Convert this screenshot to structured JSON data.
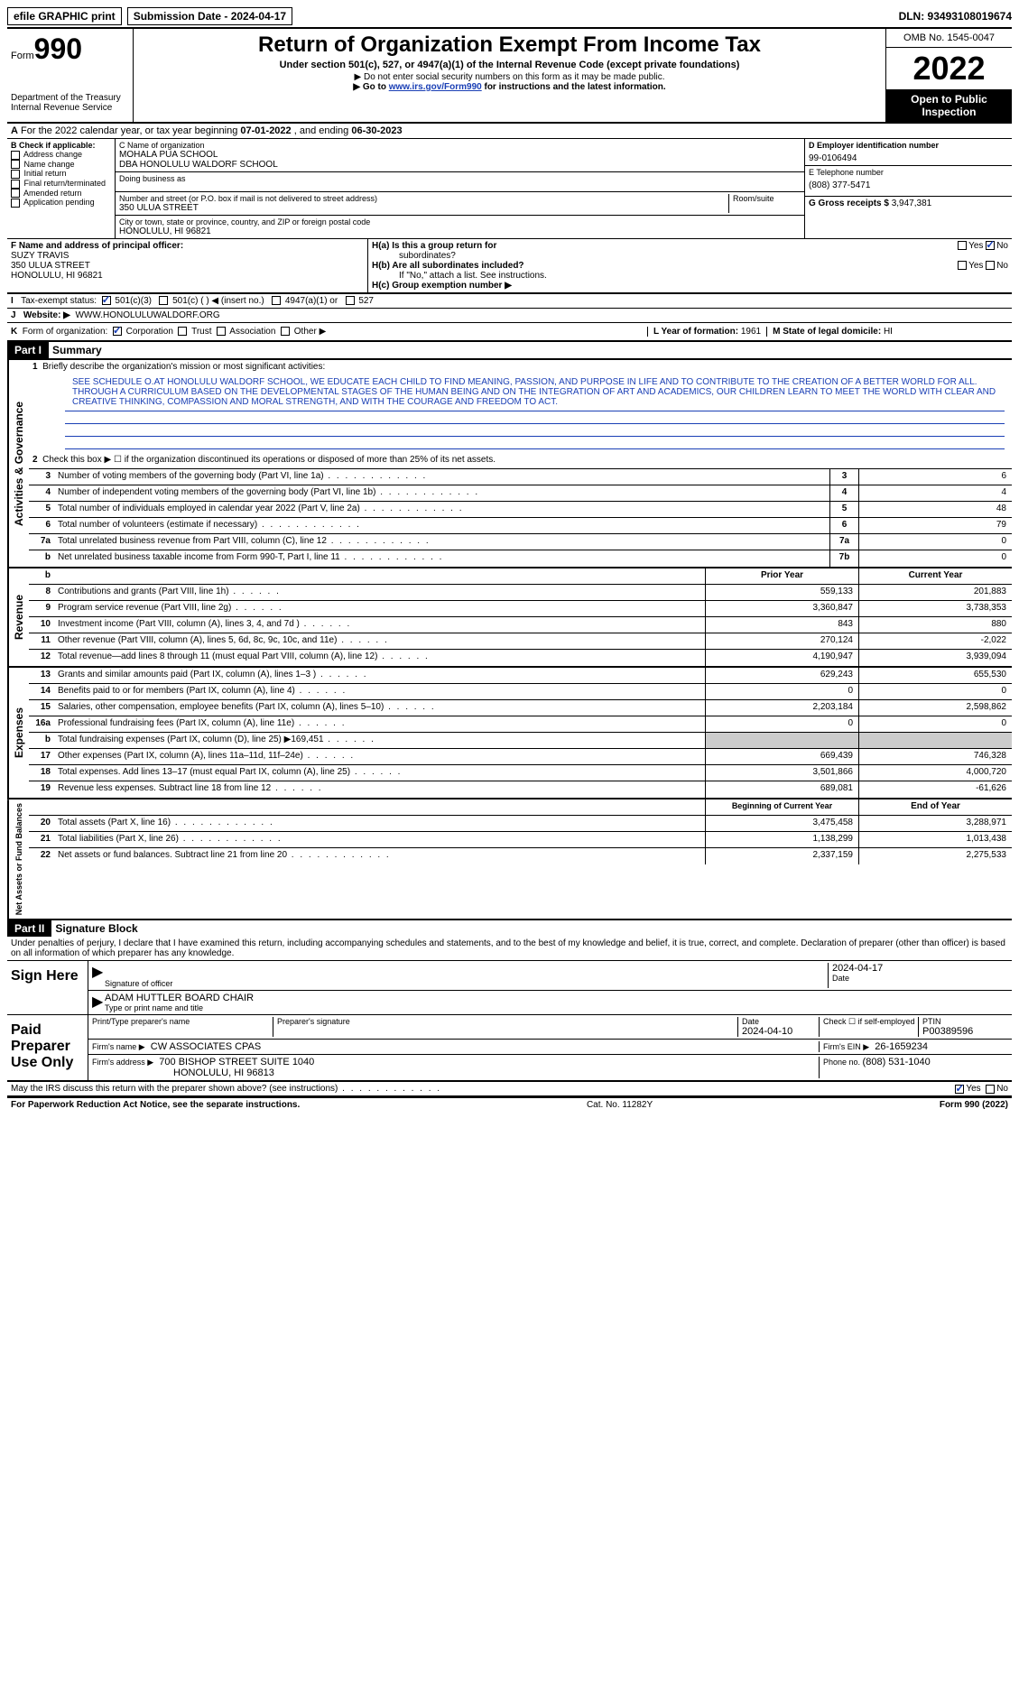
{
  "topbar": {
    "efile": "efile GRAPHIC print",
    "submission": "Submission Date - 2024-04-17",
    "dln": "DLN: 93493108019674"
  },
  "header": {
    "form_prefix": "Form",
    "form_number": "990",
    "dept": "Department of the Treasury Internal Revenue Service",
    "title": "Return of Organization Exempt From Income Tax",
    "subtitle": "Under section 501(c), 527, or 4947(a)(1) of the Internal Revenue Code (except private foundations)",
    "note1": "▶ Do not enter social security numbers on this form as it may be made public.",
    "note2_pre": "▶ Go to ",
    "note2_link": "www.irs.gov/Form990",
    "note2_post": " for instructions and the latest information.",
    "omb": "OMB No. 1545-0047",
    "year": "2022",
    "inspection": "Open to Public Inspection"
  },
  "rowA": {
    "label_a": "A",
    "text": "For the 2022 calendar year, or tax year beginning ",
    "begin": "07-01-2022",
    "mid": "   , and ending ",
    "end": "06-30-2023"
  },
  "colB": {
    "label": "B Check if applicable:",
    "items": [
      "Address change",
      "Name change",
      "Initial return",
      "Final return/terminated",
      "Amended return",
      "Application pending"
    ]
  },
  "colC": {
    "name_label": "C Name of organization",
    "name1": "MOHALA PUA SCHOOL",
    "name2": "DBA HONOLULU WALDORF SCHOOL",
    "dba_label": "Doing business as",
    "addr_label": "Number and street (or P.O. box if mail is not delivered to street address)",
    "addr": "350 ULUA STREET",
    "room_label": "Room/suite",
    "city_label": "City or town, state or province, country, and ZIP or foreign postal code",
    "city": "HONOLULU, HI  96821"
  },
  "colD": {
    "ein_label": "D Employer identification number",
    "ein": "99-0106494",
    "phone_label": "E Telephone number",
    "phone": "(808) 377-5471",
    "receipts_label": "G Gross receipts $ ",
    "receipts": "3,947,381"
  },
  "colF": {
    "label": "F  Name and address of principal officer:",
    "name": "SUZY TRAVIS",
    "addr": "350 ULUA STREET",
    "city": "HONOLULU, HI  96821"
  },
  "colH": {
    "ha_label": "H(a)  Is this a group return for",
    "ha_sub": "subordinates?",
    "hb_label": "H(b)  Are all subordinates included?",
    "hb_note": "If \"No,\" attach a list. See instructions.",
    "hc_label": "H(c)  Group exemption number ▶",
    "yes": "Yes",
    "no": "No"
  },
  "rowI": {
    "label": "I",
    "text": "Tax-exempt status:",
    "opt1": "501(c)(3)",
    "opt2": "501(c) (   ) ◀ (insert no.)",
    "opt3": "4947(a)(1) or",
    "opt4": "527"
  },
  "rowJ": {
    "label": "J",
    "text": "Website: ▶",
    "value": "WWW.HONOLULUWALDORF.ORG"
  },
  "rowK": {
    "label": "K",
    "text": "Form of organization:",
    "opts": [
      "Corporation",
      "Trust",
      "Association",
      "Other ▶"
    ],
    "l_label": "L Year of formation: ",
    "l_val": "1961",
    "m_label": "M State of legal domicile: ",
    "m_val": "HI"
  },
  "partI": {
    "header": "Part I",
    "title": "Summary",
    "line1_label": "1",
    "line1_text": "Briefly describe the organization's mission or most significant activities:",
    "mission": "SEE SCHEDULE O.AT HONOLULU WALDORF SCHOOL, WE EDUCATE EACH CHILD TO FIND MEANING, PASSION, AND PURPOSE IN LIFE AND TO CONTRIBUTE TO THE CREATION OF A BETTER WORLD FOR ALL. THROUGH A CURRICULUM BASED ON THE DEVELOPMENTAL STAGES OF THE HUMAN BEING AND ON THE INTEGRATION OF ART AND ACADEMICS, OUR CHILDREN LEARN TO MEET THE WORLD WITH CLEAR AND CREATIVE THINKING, COMPASSION AND MORAL STRENGTH, AND WITH THE COURAGE AND FREEDOM TO ACT.",
    "line2_label": "2",
    "line2_text": "Check this box ▶ ☐  if the organization discontinued its operations or disposed of more than 25% of its net assets."
  },
  "governance": {
    "side": "Activities & Governance",
    "rows": [
      {
        "n": "3",
        "desc": "Number of voting members of the governing body (Part VI, line 1a)",
        "box": "3",
        "val": "6"
      },
      {
        "n": "4",
        "desc": "Number of independent voting members of the governing body (Part VI, line 1b)",
        "box": "4",
        "val": "4"
      },
      {
        "n": "5",
        "desc": "Total number of individuals employed in calendar year 2022 (Part V, line 2a)",
        "box": "5",
        "val": "48"
      },
      {
        "n": "6",
        "desc": "Total number of volunteers (estimate if necessary)",
        "box": "6",
        "val": "79"
      },
      {
        "n": "7a",
        "desc": "Total unrelated business revenue from Part VIII, column (C), line 12",
        "box": "7a",
        "val": "0"
      },
      {
        "n": "b",
        "desc": "Net unrelated business taxable income from Form 990-T, Part I, line 11",
        "box": "7b",
        "val": "0"
      }
    ]
  },
  "revenue": {
    "side": "Revenue",
    "header_b": "b",
    "header_prior": "Prior Year",
    "header_current": "Current Year",
    "rows": [
      {
        "n": "8",
        "desc": "Contributions and grants (Part VIII, line 1h)",
        "prior": "559,133",
        "cur": "201,883"
      },
      {
        "n": "9",
        "desc": "Program service revenue (Part VIII, line 2g)",
        "prior": "3,360,847",
        "cur": "3,738,353"
      },
      {
        "n": "10",
        "desc": "Investment income (Part VIII, column (A), lines 3, 4, and 7d )",
        "prior": "843",
        "cur": "880"
      },
      {
        "n": "11",
        "desc": "Other revenue (Part VIII, column (A), lines 5, 6d, 8c, 9c, 10c, and 11e)",
        "prior": "270,124",
        "cur": "-2,022"
      },
      {
        "n": "12",
        "desc": "Total revenue—add lines 8 through 11 (must equal Part VIII, column (A), line 12)",
        "prior": "4,190,947",
        "cur": "3,939,094"
      }
    ]
  },
  "expenses": {
    "side": "Expenses",
    "rows": [
      {
        "n": "13",
        "desc": "Grants and similar amounts paid (Part IX, column (A), lines 1–3 )",
        "prior": "629,243",
        "cur": "655,530"
      },
      {
        "n": "14",
        "desc": "Benefits paid to or for members (Part IX, column (A), line 4)",
        "prior": "0",
        "cur": "0"
      },
      {
        "n": "15",
        "desc": "Salaries, other compensation, employee benefits (Part IX, column (A), lines 5–10)",
        "prior": "2,203,184",
        "cur": "2,598,862"
      },
      {
        "n": "16a",
        "desc": "Professional fundraising fees (Part IX, column (A), line 11e)",
        "prior": "0",
        "cur": "0"
      },
      {
        "n": "b",
        "desc": "Total fundraising expenses (Part IX, column (D), line 25) ▶169,451",
        "prior": "",
        "cur": "",
        "shade": true
      },
      {
        "n": "17",
        "desc": "Other expenses (Part IX, column (A), lines 11a–11d, 11f–24e)",
        "prior": "669,439",
        "cur": "746,328"
      },
      {
        "n": "18",
        "desc": "Total expenses. Add lines 13–17 (must equal Part IX, column (A), line 25)",
        "prior": "3,501,866",
        "cur": "4,000,720"
      },
      {
        "n": "19",
        "desc": "Revenue less expenses. Subtract line 18 from line 12",
        "prior": "689,081",
        "cur": "-61,626"
      }
    ]
  },
  "netassets": {
    "side": "Net Assets or Fund Balances",
    "header_begin": "Beginning of Current Year",
    "header_end": "End of Year",
    "rows": [
      {
        "n": "20",
        "desc": "Total assets (Part X, line 16)",
        "prior": "3,475,458",
        "cur": "3,288,971"
      },
      {
        "n": "21",
        "desc": "Total liabilities (Part X, line 26)",
        "prior": "1,138,299",
        "cur": "1,013,438"
      },
      {
        "n": "22",
        "desc": "Net assets or fund balances. Subtract line 21 from line 20",
        "prior": "2,337,159",
        "cur": "2,275,533"
      }
    ]
  },
  "partII": {
    "header": "Part II",
    "title": "Signature Block",
    "penalty": "Under penalties of perjury, I declare that I have examined this return, including accompanying schedules and statements, and to the best of my knowledge and belief, it is true, correct, and complete. Declaration of preparer (other than officer) is based on all information of which preparer has any knowledge."
  },
  "sign": {
    "label": "Sign Here",
    "sig_label": "Signature of officer",
    "date_label": "Date",
    "date": "2024-04-17",
    "name": "ADAM HUTTLER  BOARD CHAIR",
    "name_label": "Type or print name and title"
  },
  "preparer": {
    "label": "Paid Preparer Use Only",
    "print_label": "Print/Type preparer's name",
    "sig_label": "Preparer's signature",
    "date_label": "Date",
    "date": "2024-04-10",
    "check_label": "Check ☐ if self-employed",
    "ptin_label": "PTIN",
    "ptin": "P00389596",
    "firm_label": "Firm's name    ▶",
    "firm": "CW ASSOCIATES CPAS",
    "ein_label": "Firm's EIN ▶",
    "ein": "26-1659234",
    "addr_label": "Firm's address ▶",
    "addr1": "700 BISHOP STREET SUITE 1040",
    "addr2": "HONOLULU, HI  96813",
    "phone_label": "Phone no. ",
    "phone": "(808) 531-1040"
  },
  "discuss": {
    "text": "May the IRS discuss this return with the preparer shown above? (see instructions)",
    "yes": "Yes",
    "no": "No"
  },
  "footer": {
    "left": "For Paperwork Reduction Act Notice, see the separate instructions.",
    "center": "Cat. No. 11282Y",
    "right_pre": "Form ",
    "right_form": "990",
    "right_post": " (2022)"
  }
}
